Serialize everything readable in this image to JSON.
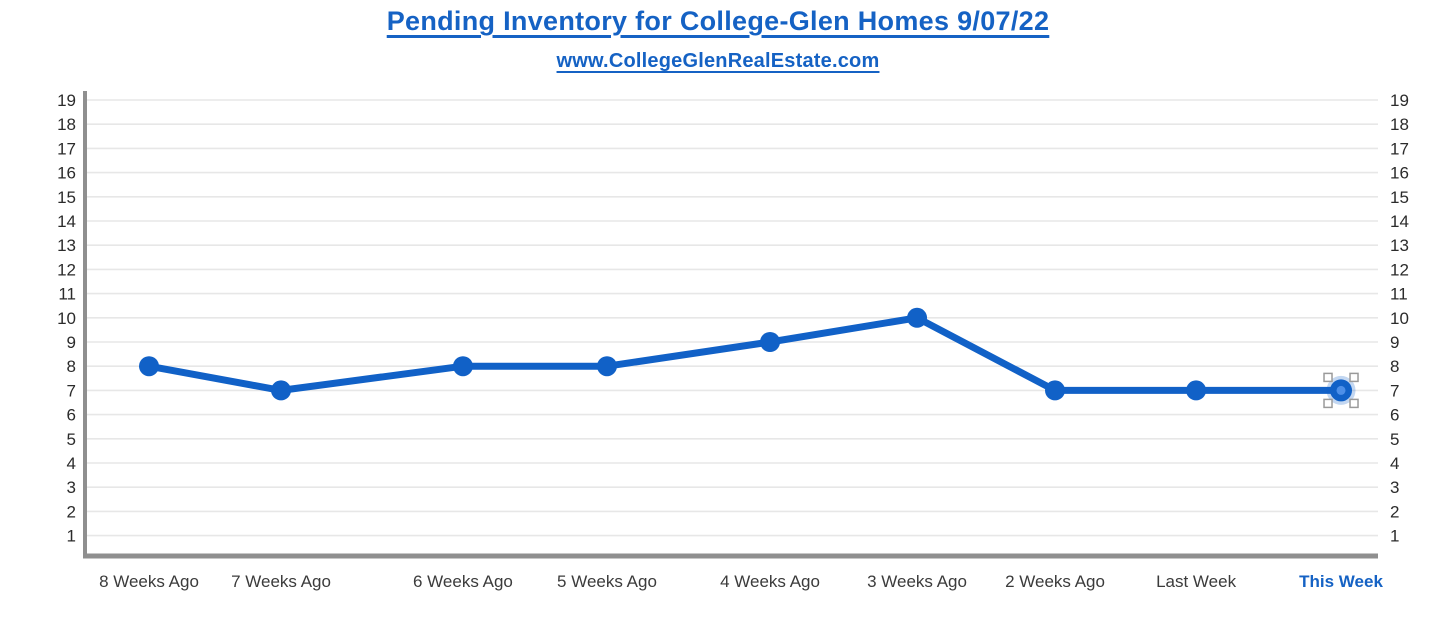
{
  "header": {
    "title": "Pending Inventory for College-Glen Homes 9/07/22",
    "subtitle": "www.CollegeGlenRealEstate.com"
  },
  "colors": {
    "brand_blue": "#1562c4",
    "line": "#1161c7",
    "selected_inner": "#4d8fe8",
    "selection_halo": "#1161c7",
    "axis": "#8f8f8f",
    "grid": "#e7e7e7",
    "tick_label": "#2b2b2b",
    "category_label": "#3b3b3b",
    "handle_fill": "#ffffff",
    "handle_border": "#9a9a9a"
  },
  "chart_data": {
    "type": "line",
    "title": "Pending Inventory for College-Glen Homes 9/07/22",
    "subtitle": "www.CollegeGlenRealEstate.com",
    "categories": [
      "8 Weeks Ago",
      "7 Weeks Ago",
      "6 Weeks Ago",
      "5 Weeks Ago",
      "4 Weeks Ago",
      "3 Weeks Ago",
      "2 Weeks Ago",
      "Last Week",
      "This Week"
    ],
    "series": [
      {
        "name": "Pending Inventory",
        "values": [
          8,
          7,
          8,
          8,
          9,
          10,
          7,
          7,
          7
        ]
      }
    ],
    "ylim": [
      1,
      19
    ],
    "y_tick_step": 1,
    "y_axis_sides": "both",
    "grid": true,
    "legend": "none",
    "selected_index": 8,
    "highlight_category": "This Week"
  }
}
